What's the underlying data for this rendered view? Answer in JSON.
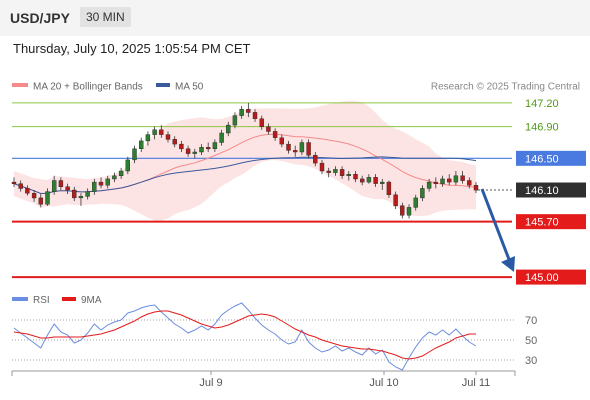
{
  "header": {
    "symbol": "USD/JPY",
    "timeframe": "30 MIN",
    "datetime": "Thursday, July 10, 2025 1:05:54 PM CET"
  },
  "legend": {
    "ma20": "MA 20 + Bollinger Bands",
    "ma50": "MA 50",
    "credit": "Research © 2025 Trading Central",
    "rsi": "RSI",
    "ma9": "9MA"
  },
  "colors": {
    "ma20": "#f48a8a",
    "bollinger_fill": "#fde4e4",
    "ma50": "#3a5a9a",
    "resistance_green": "#8cc63f",
    "pivot_blue": "#4a7ae0",
    "support_red": "#e31b1b",
    "arrow": "#2a5aa6",
    "candle_up": "#2e7d32",
    "candle_down": "#b71c1c",
    "rsi": "#6a8ee0",
    "rsi_ma": "#e31b1b"
  },
  "chart_data": [
    {
      "type": "candlestick",
      "title": "USD/JPY",
      "ylim": [
        144.9,
        147.3
      ],
      "x_labels": [
        "Jul 9",
        "Jul 10",
        "Jul 11"
      ],
      "levels": [
        {
          "value": 147.2,
          "label": "147.20",
          "kind": "resistance"
        },
        {
          "value": 146.9,
          "label": "146.90",
          "kind": "resistance"
        },
        {
          "value": 146.5,
          "label": "146.50",
          "kind": "pivot"
        },
        {
          "value": 146.1,
          "label": "146.10",
          "kind": "last"
        },
        {
          "value": 145.7,
          "label": "145.70",
          "kind": "support"
        },
        {
          "value": 145.0,
          "label": "145.00",
          "kind": "support"
        }
      ],
      "candles": [
        [
          146.2,
          146.26,
          146.14,
          146.18
        ],
        [
          146.18,
          146.22,
          146.08,
          146.12
        ],
        [
          146.12,
          146.16,
          146.03,
          146.06
        ],
        [
          146.06,
          146.1,
          145.95,
          146.0
        ],
        [
          146.0,
          146.05,
          145.88,
          145.92
        ],
        [
          145.92,
          146.12,
          145.9,
          146.08
        ],
        [
          146.08,
          146.28,
          146.04,
          146.22
        ],
        [
          146.22,
          146.26,
          146.1,
          146.14
        ],
        [
          146.14,
          146.18,
          146.05,
          146.1
        ],
        [
          146.1,
          146.14,
          145.96,
          146.0
        ],
        [
          146.0,
          146.06,
          145.9,
          146.02
        ],
        [
          146.02,
          146.12,
          145.98,
          146.08
        ],
        [
          146.08,
          146.24,
          146.04,
          146.2
        ],
        [
          146.2,
          146.26,
          146.12,
          146.16
        ],
        [
          146.16,
          146.28,
          146.12,
          146.24
        ],
        [
          146.24,
          146.32,
          146.2,
          146.28
        ],
        [
          146.28,
          146.38,
          146.24,
          146.34
        ],
        [
          146.34,
          146.52,
          146.3,
          146.48
        ],
        [
          146.48,
          146.66,
          146.44,
          146.62
        ],
        [
          146.62,
          146.76,
          146.58,
          146.72
        ],
        [
          146.72,
          146.84,
          146.66,
          146.8
        ],
        [
          146.8,
          146.9,
          146.74,
          146.86
        ],
        [
          146.86,
          146.92,
          146.76,
          146.8
        ],
        [
          146.8,
          146.84,
          146.7,
          146.74
        ],
        [
          146.74,
          146.78,
          146.64,
          146.68
        ],
        [
          146.68,
          146.72,
          146.58,
          146.62
        ],
        [
          146.62,
          146.66,
          146.52,
          146.56
        ],
        [
          146.56,
          146.62,
          146.5,
          146.58
        ],
        [
          146.58,
          146.68,
          146.54,
          146.64
        ],
        [
          146.64,
          146.7,
          146.58,
          146.62
        ],
        [
          146.62,
          146.74,
          146.58,
          146.7
        ],
        [
          146.7,
          146.86,
          146.66,
          146.82
        ],
        [
          146.82,
          146.96,
          146.78,
          146.92
        ],
        [
          146.92,
          147.08,
          146.88,
          147.04
        ],
        [
          147.04,
          147.16,
          147.0,
          147.12
        ],
        [
          147.12,
          147.2,
          147.02,
          147.08
        ],
        [
          147.08,
          147.12,
          146.96,
          147.0
        ],
        [
          147.0,
          147.04,
          146.86,
          146.9
        ],
        [
          146.9,
          146.94,
          146.8,
          146.84
        ],
        [
          146.84,
          146.88,
          146.72,
          146.76
        ],
        [
          146.76,
          146.8,
          146.64,
          146.68
        ],
        [
          146.68,
          146.72,
          146.56,
          146.6
        ],
        [
          146.6,
          146.66,
          146.52,
          146.58
        ],
        [
          146.58,
          146.74,
          146.54,
          146.7
        ],
        [
          146.7,
          146.74,
          146.5,
          146.54
        ],
        [
          146.54,
          146.58,
          146.4,
          146.44
        ],
        [
          146.44,
          146.48,
          146.3,
          146.34
        ],
        [
          146.34,
          146.38,
          146.26,
          146.32
        ],
        [
          146.32,
          146.4,
          146.28,
          146.36
        ],
        [
          146.36,
          146.4,
          146.24,
          146.28
        ],
        [
          146.28,
          146.34,
          146.22,
          146.3
        ],
        [
          146.3,
          146.34,
          146.2,
          146.24
        ],
        [
          146.24,
          146.28,
          146.16,
          146.2
        ],
        [
          146.2,
          146.3,
          146.18,
          146.26
        ],
        [
          146.26,
          146.3,
          146.14,
          146.18
        ],
        [
          146.18,
          146.24,
          146.1,
          146.2
        ],
        [
          146.2,
          146.22,
          146.0,
          146.04
        ],
        [
          146.04,
          146.08,
          145.86,
          145.9
        ],
        [
          145.9,
          145.94,
          145.74,
          145.78
        ],
        [
          145.78,
          145.92,
          145.74,
          145.88
        ],
        [
          145.88,
          146.04,
          145.84,
          146.0
        ],
        [
          146.0,
          146.16,
          145.96,
          146.12
        ],
        [
          146.12,
          146.24,
          146.08,
          146.2
        ],
        [
          146.2,
          146.26,
          146.12,
          146.18
        ],
        [
          146.18,
          146.28,
          146.14,
          146.24
        ],
        [
          146.24,
          146.3,
          146.16,
          146.2
        ],
        [
          146.2,
          146.34,
          146.16,
          146.28
        ],
        [
          146.28,
          146.34,
          146.18,
          146.22
        ],
        [
          146.22,
          146.26,
          146.12,
          146.16
        ],
        [
          146.16,
          146.2,
          146.06,
          146.1
        ]
      ]
    },
    {
      "type": "line",
      "title": "RSI",
      "yticks": [
        70,
        50,
        30
      ],
      "ylim": [
        20,
        80
      ],
      "series": [
        {
          "name": "RSI",
          "values": [
            62,
            57,
            52,
            47,
            42,
            55,
            66,
            58,
            55,
            47,
            50,
            57,
            66,
            60,
            65,
            68,
            70,
            77,
            79,
            82,
            84,
            85,
            78,
            72,
            66,
            62,
            57,
            60,
            64,
            60,
            66,
            75,
            80,
            84,
            87,
            80,
            72,
            65,
            60,
            56,
            50,
            46,
            48,
            60,
            48,
            42,
            38,
            40,
            44,
            39,
            42,
            38,
            35,
            42,
            36,
            40,
            28,
            23,
            20,
            32,
            43,
            52,
            58,
            55,
            60,
            55,
            61,
            54,
            48,
            44
          ]
        },
        {
          "name": "9MA",
          "values": [
            58,
            57,
            56,
            54,
            52,
            52,
            53,
            53,
            53,
            53,
            53,
            54,
            55,
            56,
            58,
            60,
            63,
            66,
            69,
            73,
            76,
            78,
            79,
            79,
            77,
            75,
            72,
            69,
            66,
            64,
            62,
            63,
            65,
            68,
            71,
            74,
            75,
            76,
            75,
            73,
            69,
            65,
            61,
            58,
            55,
            53,
            50,
            48,
            46,
            44,
            43,
            42,
            41,
            41,
            40,
            39,
            37,
            35,
            32,
            31,
            32,
            34,
            38,
            42,
            45,
            48,
            52,
            54,
            56,
            56
          ]
        }
      ]
    }
  ]
}
